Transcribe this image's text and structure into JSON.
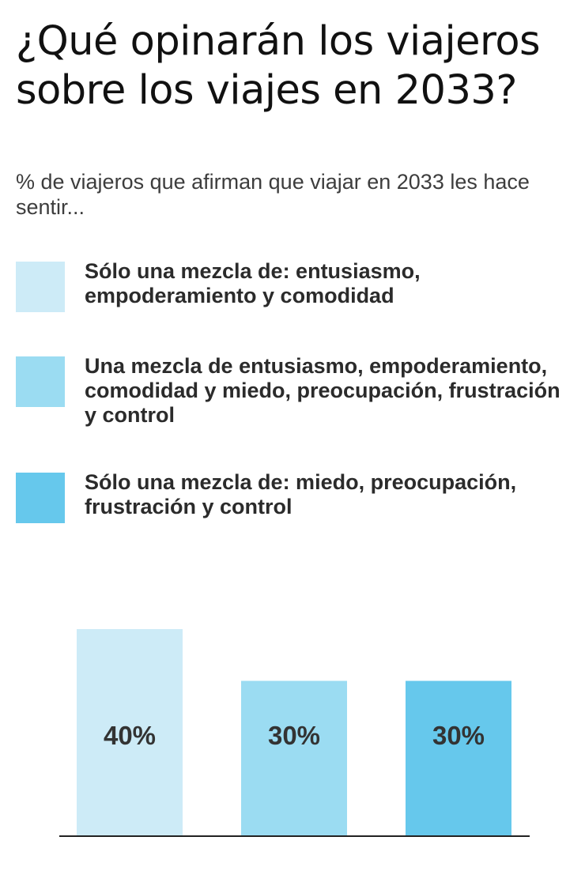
{
  "chart_data": {
    "type": "bar",
    "title": "¿Qué opinarán los viajeros sobre los viajes en 2033?",
    "subtitle": "% de viajeros que afirman que viajar en 2033 les hace sentir...",
    "categories": [
      "Sólo una mezcla de: entusiasmo, empoderamiento y comodidad",
      "Una mezcla de entusiasmo, empoderamiento, comodidad y miedo, preocupación, frustración y control",
      "Sólo una mezcla de: miedo, preocupación, frustración y control"
    ],
    "values": [
      40,
      30,
      30
    ],
    "value_labels": [
      "40%",
      "30%",
      "30%"
    ],
    "colors": [
      "#cdebf7",
      "#9bdcf2",
      "#66c8ec"
    ],
    "legend": [
      {
        "label": "Sólo una mezcla de: entusiasmo, empoderamiento y comodidad",
        "color": "#cdebf7"
      },
      {
        "label": "Una mezcla de entusiasmo, empoderamiento, comodidad y miedo, preocupación, frustración y control",
        "color": "#9bdcf2"
      },
      {
        "label": "Sólo una mezcla de: miedo, preocupación, frustración y control",
        "color": "#66c8ec"
      }
    ],
    "legend_position": "top",
    "xlabel": "",
    "ylabel": "",
    "ylim": [
      0,
      40
    ],
    "grid": false
  }
}
